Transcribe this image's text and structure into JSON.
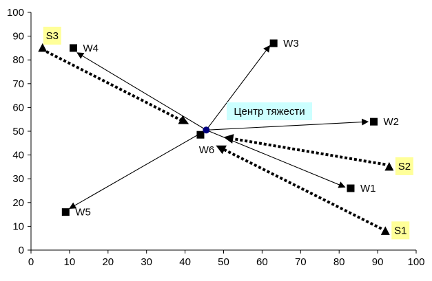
{
  "chart_data": {
    "type": "scatter",
    "xlim": [
      0,
      100
    ],
    "ylim": [
      0,
      100
    ],
    "xticks": [
      0,
      10,
      20,
      30,
      40,
      50,
      60,
      70,
      80,
      90,
      100
    ],
    "yticks": [
      0,
      10,
      20,
      30,
      40,
      50,
      60,
      70,
      80,
      90,
      100
    ],
    "grid": false,
    "center": {
      "label": "Центр тяжести",
      "x": 45.5,
      "y": 50.5,
      "color": "#000080",
      "label_bg": "#ccffff"
    },
    "warehouses": [
      {
        "name": "W1",
        "x": 83,
        "y": 26
      },
      {
        "name": "W2",
        "x": 89,
        "y": 54
      },
      {
        "name": "W3",
        "x": 63,
        "y": 87
      },
      {
        "name": "W4",
        "x": 11,
        "y": 85
      },
      {
        "name": "W5",
        "x": 9,
        "y": 16
      },
      {
        "name": "W6",
        "x": 44,
        "y": 48.5
      }
    ],
    "suppliers": [
      {
        "name": "S1",
        "x": 92,
        "y": 8
      },
      {
        "name": "S2",
        "x": 93,
        "y": 35
      },
      {
        "name": "S3",
        "x": 3,
        "y": 85
      }
    ],
    "supplier_label_bg": "#ffff99",
    "outgoing_arrows": [
      {
        "to": "W1",
        "x": 81.5,
        "y": 26.5
      },
      {
        "to": "W2",
        "x": 87.5,
        "y": 54
      },
      {
        "to": "W3",
        "x": 62,
        "y": 86
      },
      {
        "to": "W4",
        "x": 12,
        "y": 83
      },
      {
        "to": "W5",
        "x": 10,
        "y": 17.5
      }
    ],
    "incoming_arrows": [
      {
        "from": "S1",
        "x": 91,
        "y": 9,
        "tx": 48,
        "ty": 44
      },
      {
        "from": "S2",
        "x": 92,
        "y": 36,
        "tx": 50,
        "ty": 47.5
      },
      {
        "from": "S3",
        "x": 4,
        "y": 83.5,
        "tx": 41,
        "ty": 53
      }
    ]
  }
}
